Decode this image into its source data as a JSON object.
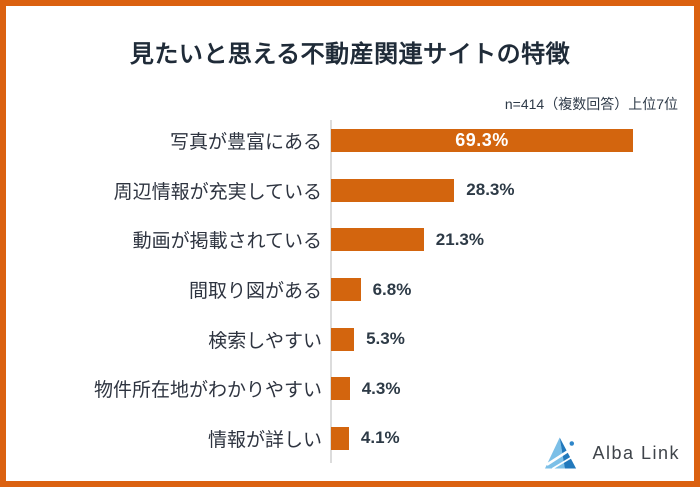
{
  "frame": {
    "border_color": "#DB6110",
    "background": "#FFFFFF"
  },
  "header": {
    "title": "見たいと思える不動産関連サイトの特徴",
    "note": "n=414（複数回答）上位7位"
  },
  "chart_data": {
    "type": "bar",
    "orientation": "horizontal",
    "title": "見たいと思える不動産関連サイトの特徴",
    "subtitle": "n=414（複数回答）上位7位",
    "categories": [
      "写真が豊富にある",
      "周辺情報が充実している",
      "動画が掲載されている",
      "間取り図がある",
      "検索しやすい",
      "物件所在地がわかりやすい",
      "情報が詳しい"
    ],
    "values": [
      69.3,
      28.3,
      21.3,
      6.8,
      5.3,
      4.3,
      4.1
    ],
    "value_labels": [
      "69.3%",
      "28.3%",
      "21.3%",
      "6.8%",
      "5.3%",
      "4.3%",
      "4.1%"
    ],
    "value_label_inside": [
      true,
      false,
      false,
      false,
      false,
      false,
      false
    ],
    "unit": "%",
    "bar_color": "#D3650E",
    "value_label_inside_color": "#FFFFFF",
    "value_label_outside_color": "#2D3A46",
    "category_label_color": "#2E3440",
    "axis_line_color": "#DCDCDC",
    "grid": false,
    "legend": false,
    "xlim": [
      0,
      75
    ]
  },
  "footer": {
    "logo_text": "Alba Link",
    "logo_icon": "alba-link-triangle-logo",
    "logo_colors": {
      "triangle_light": "#7BBFE7",
      "triangle_dark": "#2279BC",
      "streak": "#FFFFFF",
      "dot": "#2E86C9",
      "text": "#3F444A"
    }
  }
}
